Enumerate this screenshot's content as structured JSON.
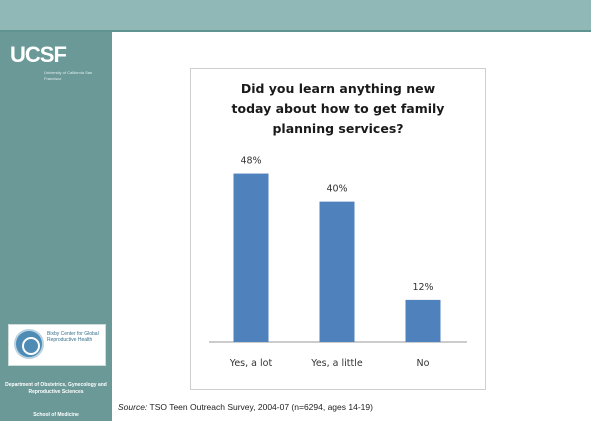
{
  "branding": {
    "logo": "UCSF",
    "logo_sub": "University of California San Francisco",
    "bcg_label": "Bixby Center for Global Reproductive Health",
    "department": "Department of Obstetrics, Gynecology and Reproductive Sciences",
    "school": "School of Medicine"
  },
  "colors": {
    "bar": "#4f81bd",
    "sidebar": "#6b9998",
    "topbar": "#8fb8b6"
  },
  "source": {
    "label": "Source:",
    "text": "TSO Teen Outreach Survey, 2004-07 (n=6294, ages 14-19)"
  },
  "chart_data": {
    "type": "bar",
    "title": "Did you learn anything new today about how to get family planning services?",
    "title_lines": [
      "Did you learn anything new",
      "today about how to get family",
      "planning services?"
    ],
    "categories": [
      "Yes, a lot",
      "Yes, a little",
      "No"
    ],
    "values": [
      48,
      40,
      12
    ],
    "value_labels": [
      "48%",
      "40%",
      "12%"
    ],
    "ylim": [
      0,
      55
    ],
    "grid": false,
    "legend": "none"
  }
}
